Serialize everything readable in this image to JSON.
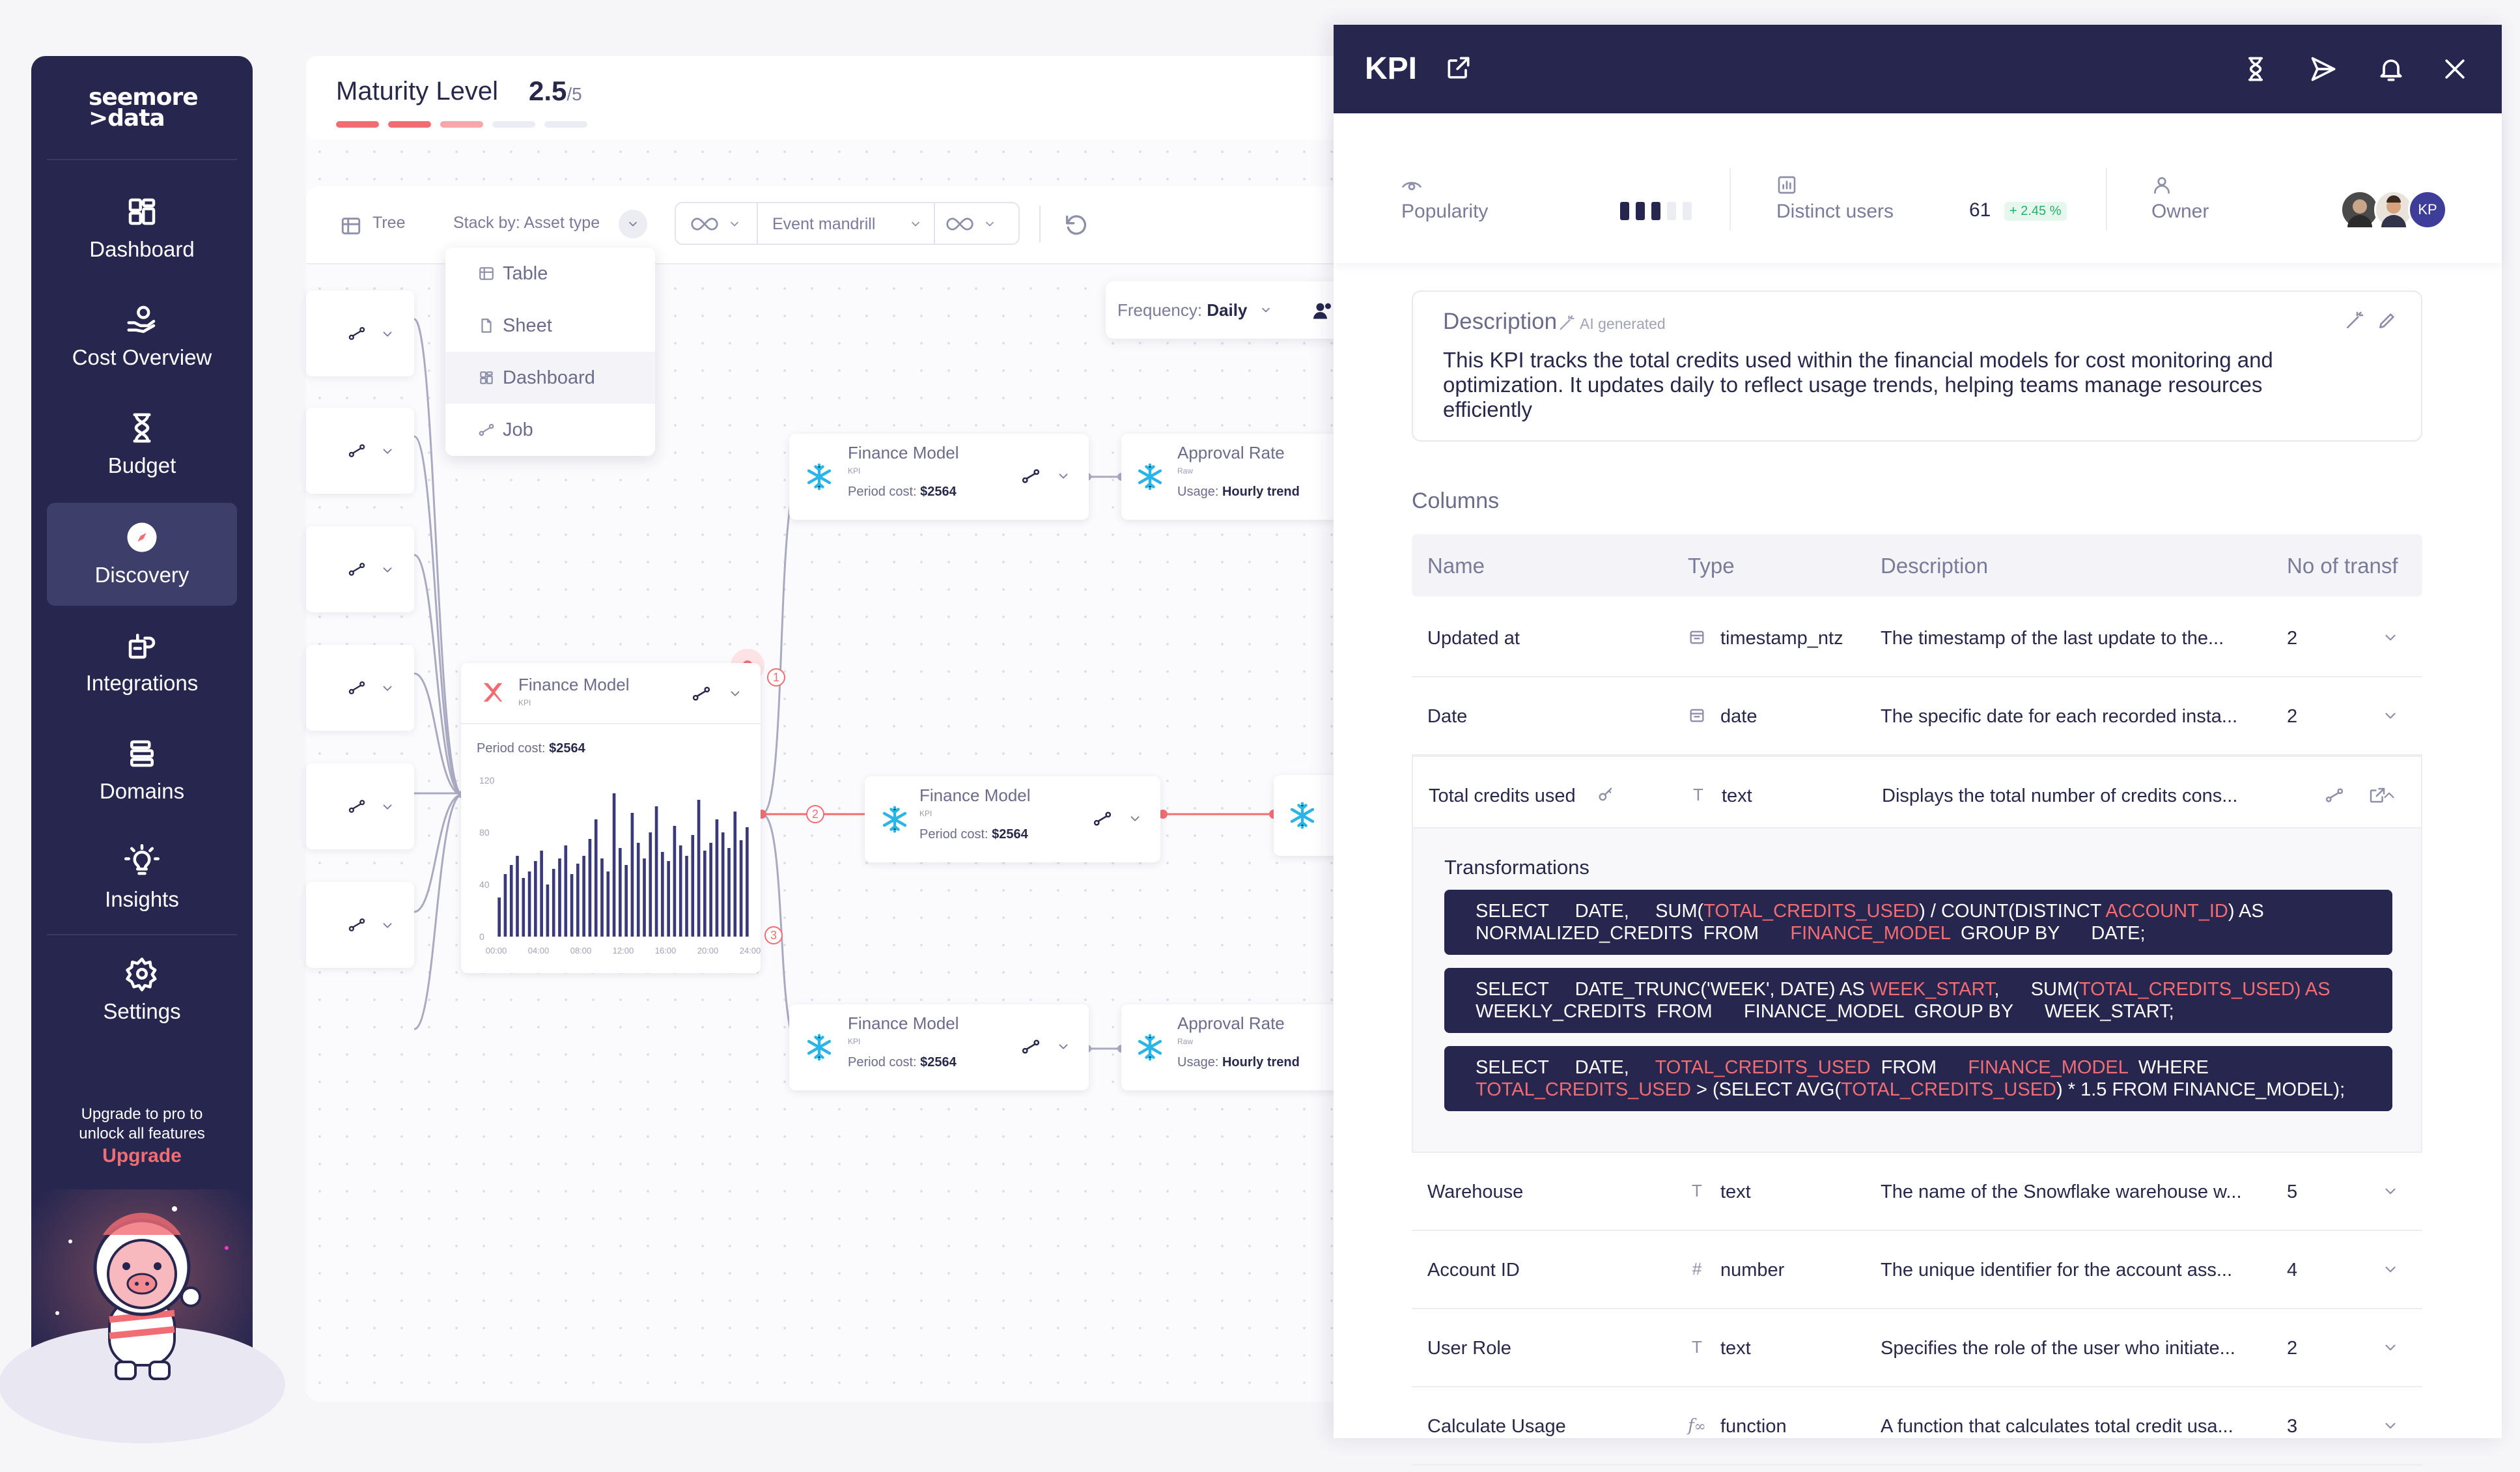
{
  "sidebar": {
    "logo": "seemore\n>data",
    "items": [
      {
        "label": "Dashboard",
        "icon": "dashboard-icon"
      },
      {
        "label": "Cost Overview",
        "icon": "cost-icon"
      },
      {
        "label": "Budget",
        "icon": "budget-icon"
      },
      {
        "label": "Discovery",
        "icon": "compass-icon",
        "active": true
      },
      {
        "label": "Integrations",
        "icon": "integrations-icon"
      },
      {
        "label": "Domains",
        "icon": "domains-icon"
      },
      {
        "label": "Insights",
        "icon": "bulb-icon"
      },
      {
        "label": "Settings",
        "icon": "gear-icon"
      }
    ],
    "upgrade_text": "Upgrade to pro to unlock all features",
    "upgrade_link": "Upgrade"
  },
  "maturity": {
    "label": "Maturity Level",
    "value": "2.5",
    "denominator": "/5",
    "level": 2.5,
    "max": 5
  },
  "toolbar": {
    "tree": "Tree",
    "stack_by": "Stack by: Asset type",
    "event": "Event mandrill",
    "frequency_label": "Frequency:",
    "frequency_value": "Daily"
  },
  "asset_menu": [
    "Table",
    "Sheet",
    "Dashboard",
    "Job"
  ],
  "graph": {
    "center": {
      "title": "Finance Model",
      "sub": "KPI",
      "cost_label": "Period cost:",
      "cost": "$2564",
      "y_ticks": [
        "120",
        "80",
        "40",
        "0"
      ],
      "x_ticks": [
        "00:00",
        "04:00",
        "08:00",
        "12:00",
        "16:00",
        "20:00",
        "24:00"
      ],
      "bars": [
        30,
        48,
        55,
        62,
        45,
        50,
        58,
        66,
        40,
        52,
        60,
        70,
        48,
        56,
        62,
        75,
        90,
        60,
        50,
        110,
        68,
        55,
        95,
        72,
        60,
        80,
        100,
        65,
        58,
        85,
        70,
        62,
        78,
        105,
        66,
        72,
        90,
        80,
        68,
        96,
        74,
        84
      ]
    },
    "finance_nodes": [
      {
        "title": "Finance Model",
        "sub": "KPI",
        "cost_label": "Period cost:",
        "cost": "$2564"
      }
    ],
    "approval": {
      "title": "Approval Rate",
      "sub": "Raw",
      "usage_label": "Usage:",
      "usage": "Hourly trend"
    },
    "edge_labels": [
      "1",
      "2",
      "3"
    ]
  },
  "kpi": {
    "title": "KPI",
    "popularity_label": "Popularity",
    "popularity_level": 3,
    "popularity_max": 5,
    "distinct_users_label": "Distinct users",
    "distinct_users": "61",
    "distinct_users_change": "+ 2.45 %",
    "owner_label": "Owner",
    "owner_initials": "KP",
    "description_title": "Description",
    "ai_badge": "AI generated",
    "description": "This KPI tracks the total credits used within the financial models for cost monitoring and optimization. It updates daily to reflect usage trends, helping teams manage resources efficiently",
    "columns_title": "Columns",
    "headers": {
      "name": "Name",
      "type": "Type",
      "description": "Description",
      "transf": "No of transf"
    },
    "rows": [
      {
        "name": "Updated at",
        "type": "timestamp_ntz",
        "ticon": "calendar",
        "desc": "The timestamp of the last update to the...",
        "n": "2"
      },
      {
        "name": "Date",
        "type": "date",
        "ticon": "calendar",
        "desc": "The specific date for each recorded insta...",
        "n": "2"
      },
      {
        "name": "Total credits used",
        "type": "text",
        "ticon": "T",
        "desc": "Displays the total number of credits cons...",
        "n": ""
      },
      {
        "name": "Warehouse",
        "type": "text",
        "ticon": "T",
        "desc": "The name of the Snowflake warehouse w...",
        "n": "5"
      },
      {
        "name": "Account ID",
        "type": "number",
        "ticon": "#",
        "desc": "The unique identifier for the account ass...",
        "n": "4"
      },
      {
        "name": "User Role",
        "type": "text",
        "ticon": "T",
        "desc": "Specifies the role of the user who initiate...",
        "n": "2"
      },
      {
        "name": "Calculate Usage",
        "type": "function",
        "ticon": "fx",
        "desc": "A function that calculates total credit usa...",
        "n": "3"
      }
    ],
    "transformations_title": "Transformations"
  }
}
